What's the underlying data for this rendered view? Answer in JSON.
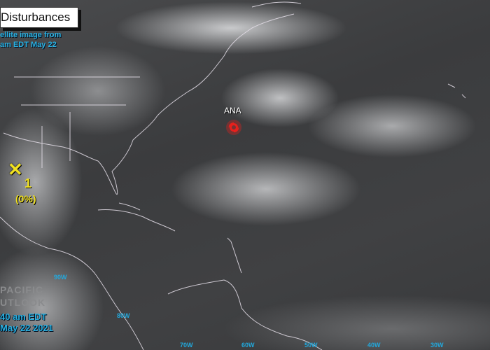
{
  "title": "Disturbances",
  "satellite_caption": [
    "ellite image from",
    "am EDT May 22"
  ],
  "outlook": [
    "PACIFIC",
    "UTLOOK"
  ],
  "timestamp": [
    "40 am EDT",
    "May 22 2021"
  ],
  "longitude_labels": [
    "90W",
    "80W",
    "70W",
    "60W",
    "50W",
    "40W",
    "30W"
  ],
  "storm": {
    "name": "ANA",
    "icon": "tropical-storm-icon",
    "color": "#e8201c"
  },
  "disturbance": {
    "number": "1",
    "chance": "(0%)",
    "icon": "x-mark-icon",
    "color": "#f0e020"
  },
  "colors": {
    "label_blue": "#2ab0e0"
  }
}
